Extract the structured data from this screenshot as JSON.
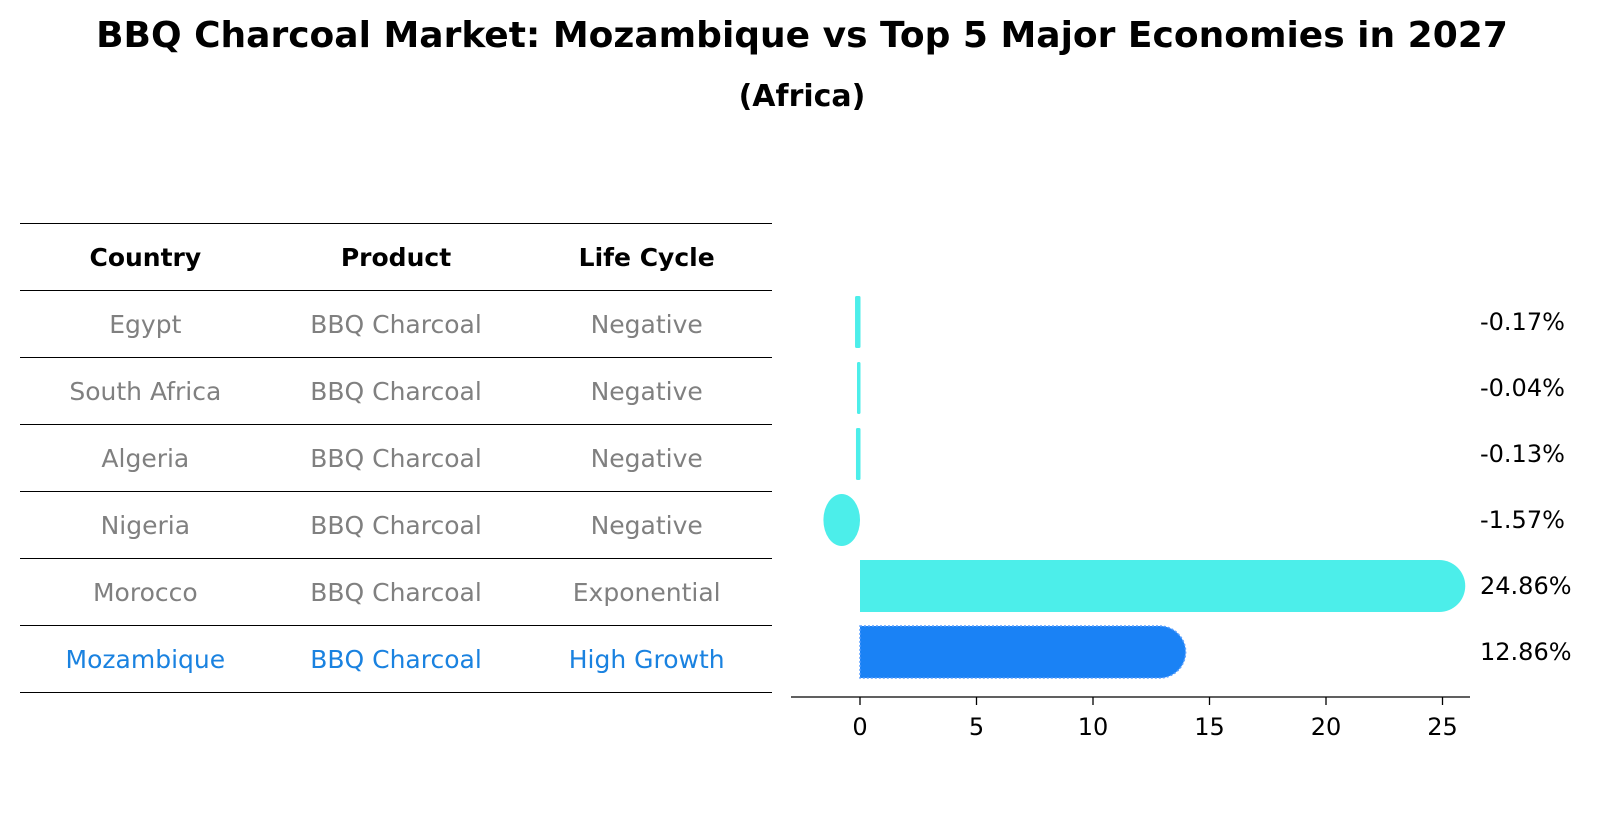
{
  "title": "BBQ Charcoal Market: Mozambique vs Top 5 Major Economies in 2027",
  "subtitle": "(Africa)",
  "table": {
    "headers": [
      "Country",
      "Product",
      "Life Cycle"
    ],
    "rows": [
      {
        "country": "Egypt",
        "product": "BBQ Charcoal",
        "life_cycle": "Negative"
      },
      {
        "country": "South Africa",
        "product": "BBQ Charcoal",
        "life_cycle": "Negative"
      },
      {
        "country": "Algeria",
        "product": "BBQ Charcoal",
        "life_cycle": "Negative"
      },
      {
        "country": "Nigeria",
        "product": "BBQ Charcoal",
        "life_cycle": "Negative"
      },
      {
        "country": "Morocco",
        "product": "BBQ Charcoal",
        "life_cycle": "Exponential"
      },
      {
        "country": "Mozambique",
        "product": "BBQ Charcoal",
        "life_cycle": "High Growth"
      }
    ]
  },
  "chart_data": {
    "type": "bar",
    "orientation": "horizontal",
    "categories": [
      "Egypt",
      "South Africa",
      "Algeria",
      "Nigeria",
      "Morocco",
      "Mozambique"
    ],
    "values": [
      -0.17,
      -0.04,
      -0.13,
      -1.57,
      24.86,
      12.86
    ],
    "value_labels": [
      "-0.17%",
      "-0.04%",
      "-0.13%",
      "-1.57%",
      "24.86%",
      "12.86%"
    ],
    "highlight": "Mozambique",
    "xticks": [
      0,
      5,
      10,
      15,
      20,
      25
    ],
    "xlim": [
      -3,
      26
    ],
    "colors": {
      "default": "#4ceeea",
      "highlight": "#1a82f5"
    }
  }
}
